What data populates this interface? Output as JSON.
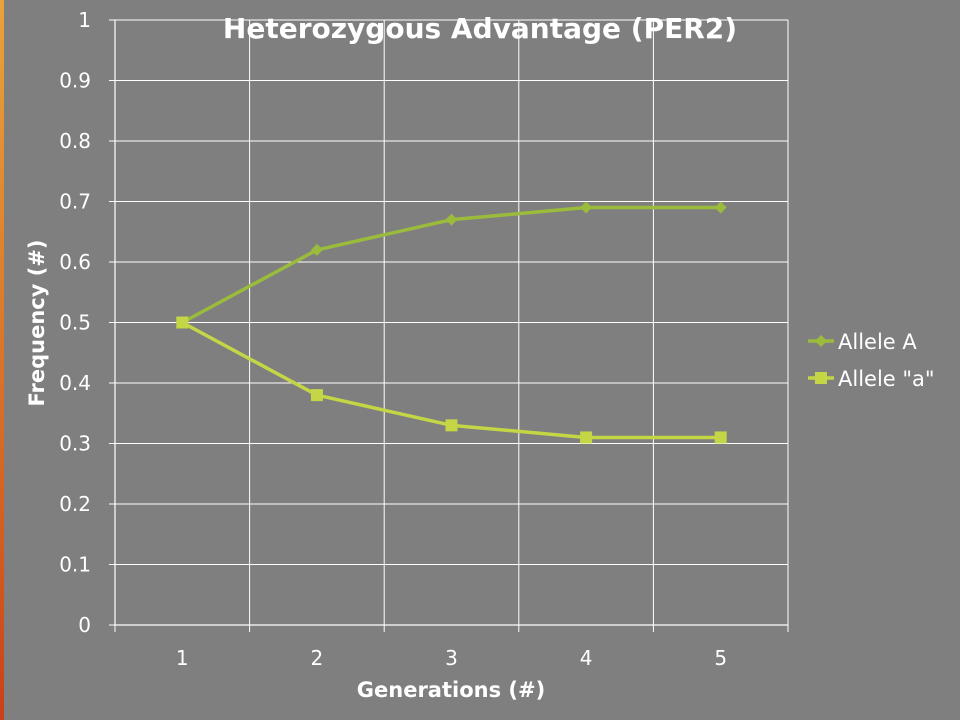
{
  "chart_data": {
    "type": "line",
    "title": "Heterozygous Advantage (PER2)",
    "xlabel": "Generations (#)",
    "ylabel": "Frequency (#)",
    "categories": [
      "1",
      "2",
      "3",
      "4",
      "5"
    ],
    "ylim": [
      0,
      1
    ],
    "yticks": [
      "0",
      "0.1",
      "0.2",
      "0.3",
      "0.4",
      "0.5",
      "0.6",
      "0.7",
      "0.8",
      "0.9",
      "1"
    ],
    "grid": true,
    "legend_position": "right",
    "series": [
      {
        "name": "Allele A",
        "values": [
          0.5,
          0.62,
          0.67,
          0.69,
          0.69
        ],
        "color": "#9bbb3c",
        "marker": "diamond"
      },
      {
        "name": "Allele \"a\"",
        "values": [
          0.5,
          0.38,
          0.33,
          0.31,
          0.31
        ],
        "color": "#c4d645",
        "marker": "square"
      }
    ]
  }
}
